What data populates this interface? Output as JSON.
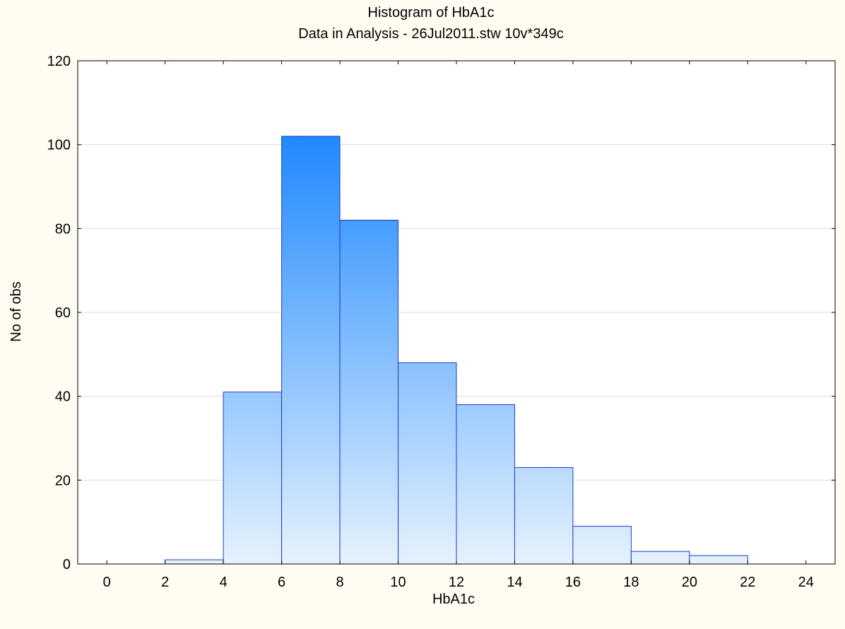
{
  "chart_data": {
    "type": "bar",
    "title": "Histogram of HbA1c",
    "subtitle": "Data in Analysis - 26Jul2011.stw 10v*349c",
    "xlabel": "HbA1c",
    "ylabel": "No of obs",
    "xlim": [
      -1,
      25
    ],
    "ylim": [
      0,
      120
    ],
    "x_ticks": [
      0,
      2,
      4,
      6,
      8,
      10,
      12,
      14,
      16,
      18,
      20,
      22,
      24
    ],
    "y_ticks": [
      0,
      20,
      40,
      60,
      80,
      100,
      120
    ],
    "bins": [
      {
        "from": 0,
        "to": 2,
        "count": 0
      },
      {
        "from": 2,
        "to": 4,
        "count": 1
      },
      {
        "from": 4,
        "to": 6,
        "count": 41
      },
      {
        "from": 6,
        "to": 8,
        "count": 102
      },
      {
        "from": 8,
        "to": 10,
        "count": 82
      },
      {
        "from": 10,
        "to": 12,
        "count": 48
      },
      {
        "from": 12,
        "to": 14,
        "count": 38
      },
      {
        "from": 14,
        "to": 16,
        "count": 23
      },
      {
        "from": 16,
        "to": 18,
        "count": 9
      },
      {
        "from": 18,
        "to": 20,
        "count": 3
      },
      {
        "from": 20,
        "to": 22,
        "count": 2
      },
      {
        "from": 22,
        "to": 24,
        "count": 0
      }
    ],
    "grid": true,
    "colors": {
      "bar_top": "#1E88FF",
      "bar_bottom": "#E6F2FD",
      "bar_edge": "#1A3FBF",
      "grid": "#DDDDDD",
      "background": "#FFFDF2",
      "plot_background": "#FFFFFF"
    }
  }
}
